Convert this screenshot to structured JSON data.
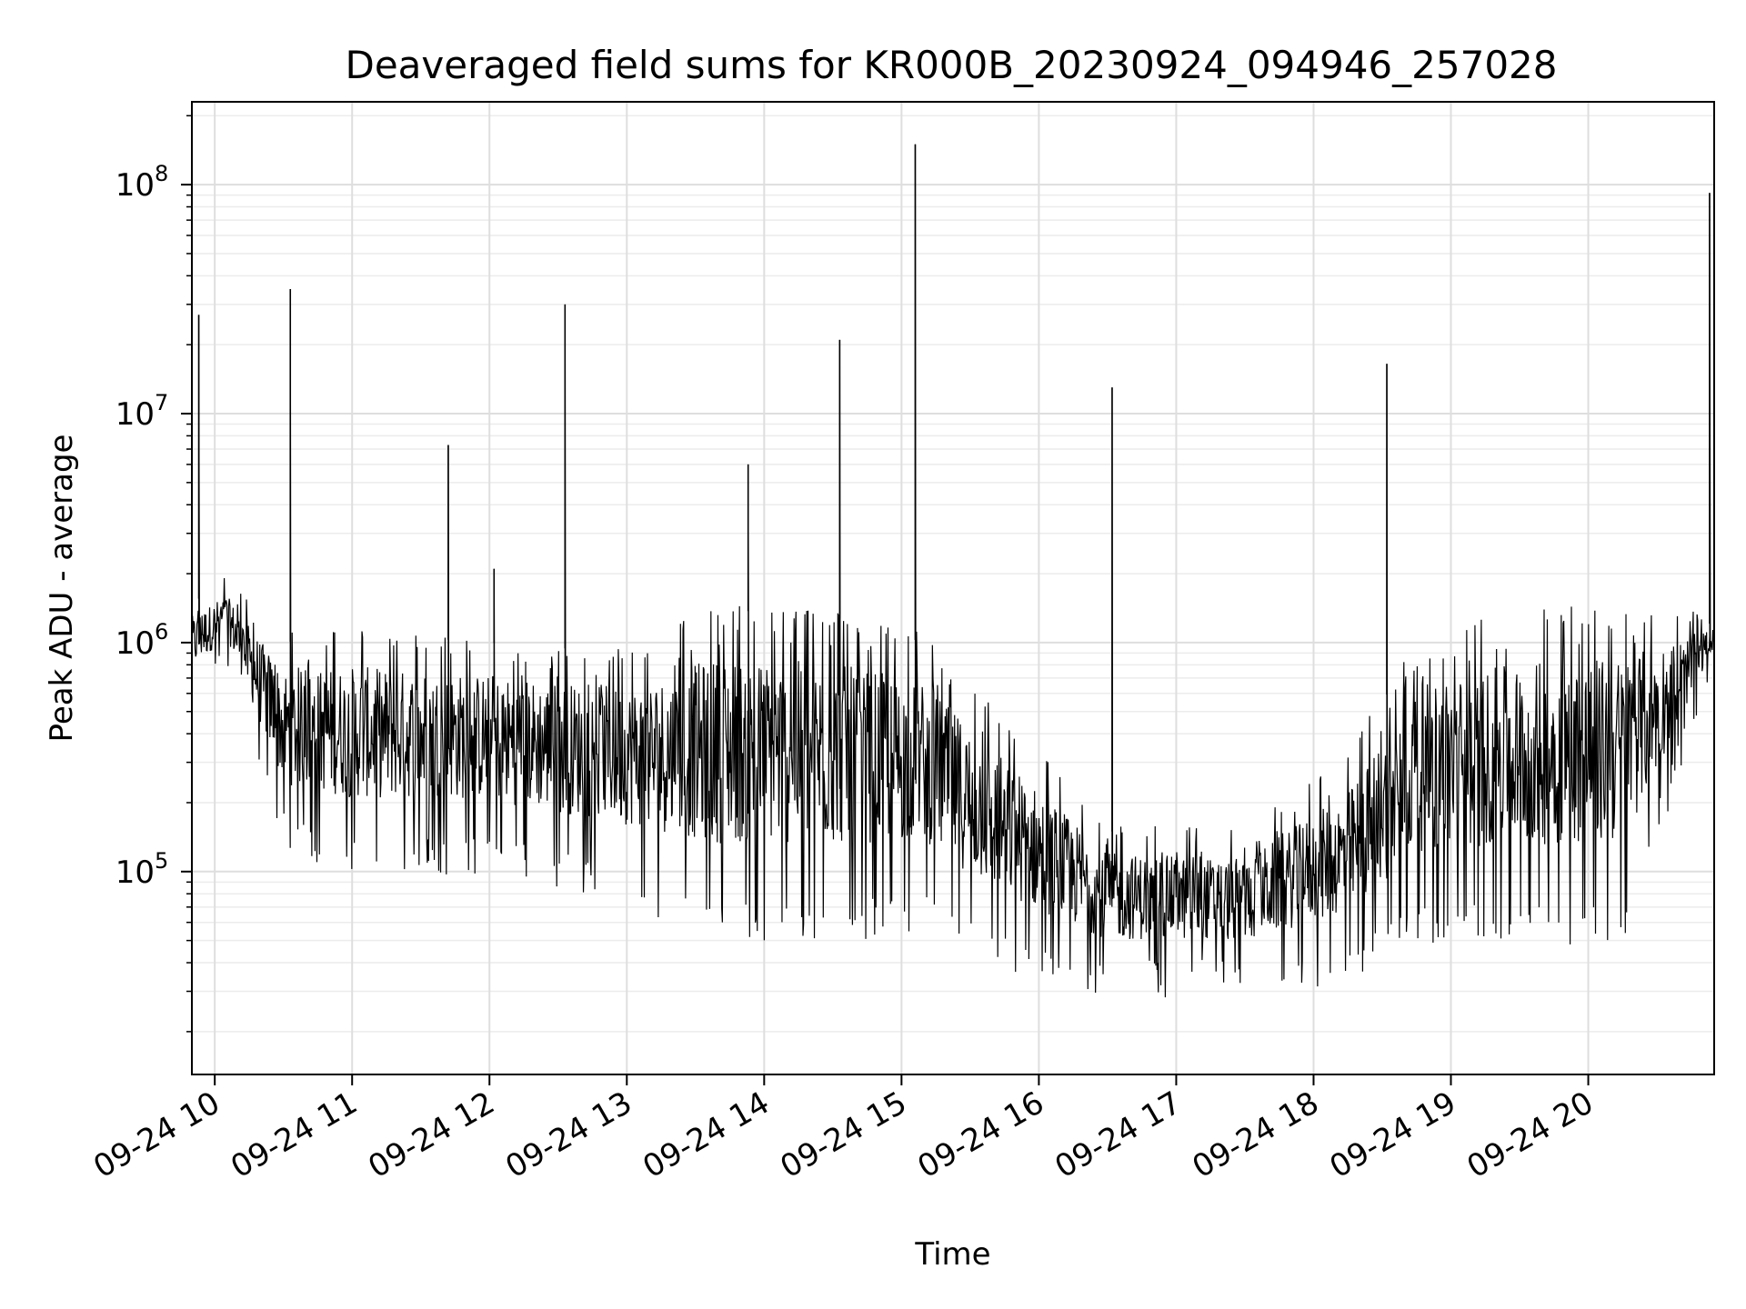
{
  "chart_data": {
    "type": "line",
    "title": "Deaveraged field sums for KR000B_20230924_094946_257028",
    "xlabel": "Time",
    "ylabel": "Peak ADU - average",
    "yscale": "log",
    "ylim": [
      13000,
      230000000
    ],
    "xlim": [
      "2023-09-24 09:50",
      "2023-09-24 20:55"
    ],
    "grid": true,
    "x_ticks": [
      "09-24 10",
      "09-24 11",
      "09-24 12",
      "09-24 13",
      "09-24 14",
      "09-24 15",
      "09-24 16",
      "09-24 17",
      "09-24 18",
      "09-24 19",
      "09-24 20"
    ],
    "y_ticks": [
      {
        "base": "10",
        "exp": "5"
      },
      {
        "base": "10",
        "exp": "6"
      },
      {
        "base": "10",
        "exp": "7"
      },
      {
        "base": "10",
        "exp": "8"
      }
    ],
    "baseline_envelope": {
      "x": [
        "2023-09-24 09:50",
        "2023-09-24 10:05",
        "2023-09-24 10:30",
        "2023-09-24 11:00",
        "2023-09-24 12:00",
        "2023-09-24 13:00",
        "2023-09-24 13:40",
        "2023-09-24 14:30",
        "2023-09-24 15:10",
        "2023-09-24 15:40",
        "2023-09-24 16:30",
        "2023-09-24 17:30",
        "2023-09-24 18:15",
        "2023-09-24 18:45",
        "2023-09-24 19:30",
        "2023-09-24 20:15",
        "2023-09-24 20:55"
      ],
      "high": [
        1500000,
        1800000,
        1000000,
        1100000,
        1000000,
        900000,
        1400000,
        1300000,
        1000000,
        500000,
        150000,
        140000,
        300000,
        1000000,
        1300000,
        1400000,
        1200000
      ],
      "low": [
        600000,
        900000,
        150000,
        120000,
        120000,
        90000,
        60000,
        60000,
        70000,
        45000,
        35000,
        35000,
        40000,
        60000,
        60000,
        60000,
        900000
      ]
    },
    "peaks": {
      "x": [
        "2023-09-24 09:53",
        "2023-09-24 10:33",
        "2023-09-24 11:42",
        "2023-09-24 12:02",
        "2023-09-24 12:33",
        "2023-09-24 13:53",
        "2023-09-24 14:33",
        "2023-09-24 15:06",
        "2023-09-24 16:32",
        "2023-09-24 18:32",
        "2023-09-24 20:53"
      ],
      "y": [
        27000000,
        35000000,
        7300000,
        2100000,
        30000000,
        6000000,
        21000000,
        150000000,
        13000000,
        16500000,
        92000000
      ]
    }
  }
}
